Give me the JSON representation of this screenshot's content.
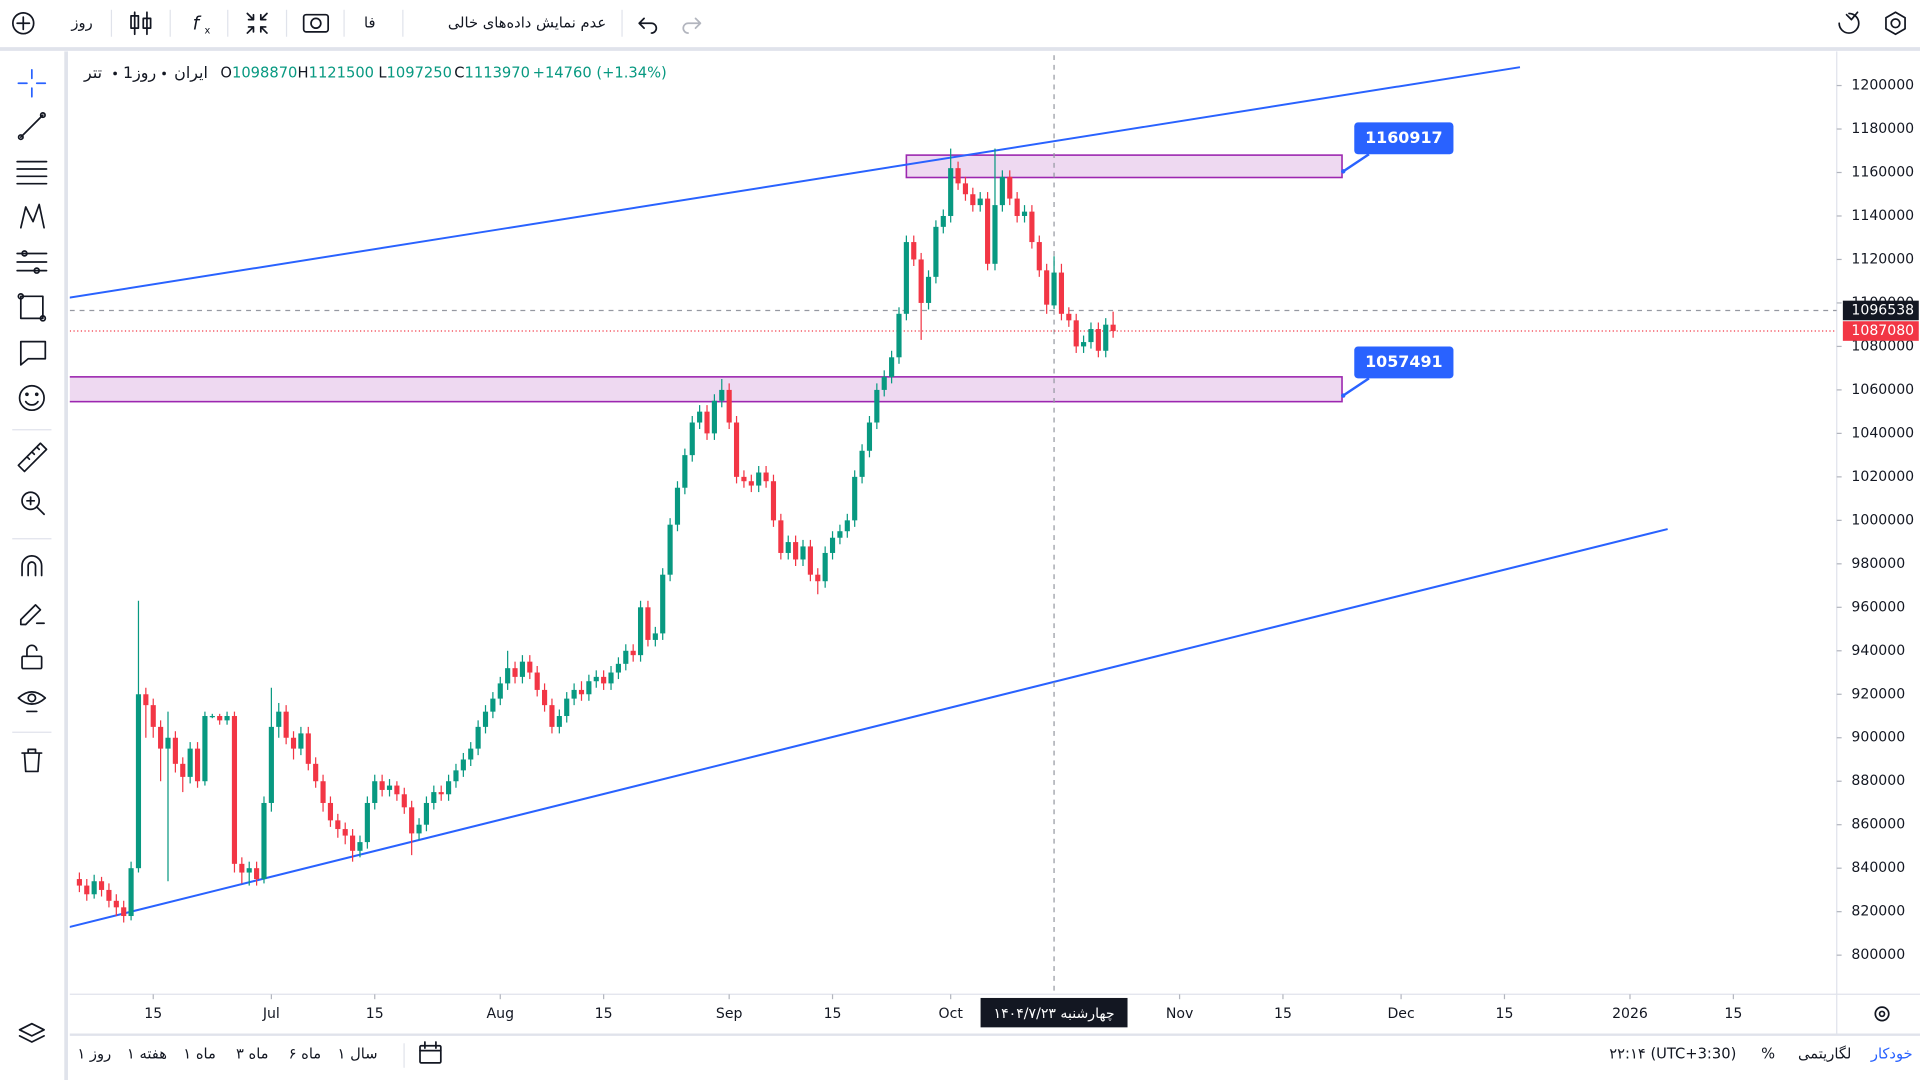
{
  "toolbar": {
    "interval": "روز",
    "language": "فا",
    "empty_data": "عدم نمایش داده‌های خالی"
  },
  "header": {
    "symbol": "تتر",
    "interval": "1روز",
    "exchange": "ایران",
    "ohlc_labels": [
      "O",
      "H",
      "L",
      "C"
    ],
    "change": "+14760 (+1.34%)"
  },
  "chart_data": {
    "type": "candlestick",
    "up_color": "#089981",
    "down_color": "#f23645",
    "line_color": "#2962ff",
    "box_fill": "rgba(206,147,216,0.35)",
    "box_stroke": "#9c27b0",
    "xlim": [
      2.7,
      242
    ],
    "ylim": [
      782000,
      1214000
    ],
    "xticks": [
      {
        "value": 14,
        "label": "15"
      },
      {
        "value": 30,
        "label": "Jul"
      },
      {
        "value": 44,
        "label": "15"
      },
      {
        "value": 61,
        "label": "Aug"
      },
      {
        "value": 75,
        "label": "15"
      },
      {
        "value": 92,
        "label": "Sep"
      },
      {
        "value": 106,
        "label": "15"
      },
      {
        "value": 122,
        "label": "Oct"
      },
      {
        "value": 153,
        "label": "Nov"
      },
      {
        "value": 167,
        "label": "15"
      },
      {
        "value": 183,
        "label": "Dec"
      },
      {
        "value": 197,
        "label": "15"
      },
      {
        "value": 214,
        "label": "2026"
      },
      {
        "value": 228,
        "label": "15"
      }
    ],
    "yticks": [
      800000,
      820000,
      840000,
      860000,
      880000,
      900000,
      920000,
      940000,
      960000,
      980000,
      1000000,
      1020000,
      1040000,
      1060000,
      1080000,
      1100000,
      1120000,
      1140000,
      1160000,
      1180000,
      1200000
    ],
    "x": [
      4,
      5,
      6,
      7,
      8,
      9,
      10,
      11,
      12,
      13,
      14,
      15,
      16,
      17,
      18,
      19,
      20,
      21,
      22,
      23,
      24,
      25,
      26,
      27,
      28,
      29,
      30,
      31,
      32,
      33,
      34,
      35,
      36,
      37,
      38,
      39,
      40,
      41,
      42,
      43,
      44,
      45,
      46,
      47,
      48,
      49,
      50,
      51,
      52,
      53,
      54,
      55,
      56,
      57,
      58,
      59,
      60,
      61,
      62,
      63,
      64,
      65,
      66,
      67,
      68,
      69,
      70,
      71,
      72,
      73,
      74,
      75,
      76,
      77,
      78,
      79,
      80,
      81,
      82,
      83,
      84,
      85,
      86,
      87,
      88,
      89,
      90,
      91,
      92,
      93,
      94,
      95,
      96,
      97,
      98,
      99,
      100,
      101,
      102,
      103,
      104,
      105,
      106,
      107,
      108,
      109,
      110,
      111,
      112,
      113,
      114,
      115,
      116,
      117,
      118,
      119,
      120,
      121,
      122,
      123,
      124,
      125,
      126,
      127,
      128,
      129,
      130,
      131,
      132,
      133,
      134,
      135,
      136,
      137,
      138,
      139,
      140,
      141,
      142,
      143,
      144
    ],
    "candles": [
      [
        835000,
        838000,
        829000,
        832000
      ],
      [
        832000,
        835000,
        825000,
        828000
      ],
      [
        828000,
        837000,
        826000,
        834000
      ],
      [
        834000,
        836000,
        827000,
        830000
      ],
      [
        830000,
        833000,
        822000,
        825000
      ],
      [
        825000,
        828000,
        818000,
        822000
      ],
      [
        822000,
        825000,
        815000,
        818000
      ],
      [
        818000,
        843000,
        816000,
        840000
      ],
      [
        840000,
        963000,
        838000,
        920000
      ],
      [
        920000,
        923000,
        900000,
        915000
      ],
      [
        915000,
        918000,
        900000,
        905000
      ],
      [
        905000,
        908000,
        880000,
        895000
      ],
      [
        895000,
        912000,
        834000,
        900000
      ],
      [
        900000,
        903000,
        884000,
        888000
      ],
      [
        888000,
        891000,
        875000,
        882000
      ],
      [
        882000,
        898000,
        879000,
        895000
      ],
      [
        895000,
        898000,
        877000,
        880000
      ],
      [
        880000,
        912000,
        878000,
        910000
      ],
      [
        910000,
        911000,
        909000,
        910000
      ],
      [
        910000,
        911000,
        906000,
        908000
      ],
      [
        908000,
        912000,
        906000,
        910000
      ],
      [
        910000,
        912000,
        838000,
        842000
      ],
      [
        842000,
        845000,
        833000,
        838000
      ],
      [
        838000,
        843000,
        832000,
        840000
      ],
      [
        840000,
        843000,
        832000,
        835000
      ],
      [
        835000,
        873000,
        833000,
        870000
      ],
      [
        870000,
        923000,
        866000,
        905000
      ],
      [
        905000,
        916000,
        900000,
        912000
      ],
      [
        912000,
        915000,
        897000,
        900000
      ],
      [
        900000,
        903000,
        890000,
        895000
      ],
      [
        895000,
        905000,
        892000,
        902000
      ],
      [
        902000,
        905000,
        885000,
        888000
      ],
      [
        888000,
        891000,
        877000,
        880000
      ],
      [
        880000,
        883000,
        866000,
        870000
      ],
      [
        870000,
        873000,
        859000,
        862000
      ],
      [
        862000,
        865000,
        854000,
        858000
      ],
      [
        858000,
        861000,
        851000,
        855000
      ],
      [
        855000,
        858000,
        843000,
        848000
      ],
      [
        848000,
        855000,
        845000,
        852000
      ],
      [
        852000,
        873000,
        849000,
        870000
      ],
      [
        870000,
        883000,
        867000,
        880000
      ],
      [
        880000,
        883000,
        873000,
        876000
      ],
      [
        876000,
        881000,
        873000,
        878000
      ],
      [
        878000,
        880000,
        871000,
        874000
      ],
      [
        874000,
        877000,
        865000,
        868000
      ],
      [
        868000,
        871000,
        846000,
        856000
      ],
      [
        856000,
        863000,
        853000,
        860000
      ],
      [
        860000,
        873000,
        857000,
        870000
      ],
      [
        870000,
        878000,
        867000,
        875000
      ],
      [
        875000,
        878000,
        871000,
        874000
      ],
      [
        874000,
        883000,
        871000,
        880000
      ],
      [
        880000,
        888000,
        877000,
        885000
      ],
      [
        885000,
        893000,
        882000,
        890000
      ],
      [
        890000,
        898000,
        887000,
        895000
      ],
      [
        895000,
        908000,
        892000,
        905000
      ],
      [
        905000,
        915000,
        902000,
        912000
      ],
      [
        912000,
        921000,
        909000,
        918000
      ],
      [
        918000,
        928000,
        915000,
        925000
      ],
      [
        925000,
        940000,
        922000,
        932000
      ],
      [
        932000,
        935000,
        925000,
        928000
      ],
      [
        928000,
        938000,
        925000,
        935000
      ],
      [
        935000,
        938000,
        927000,
        930000
      ],
      [
        930000,
        933000,
        919000,
        922000
      ],
      [
        922000,
        925000,
        912000,
        915000
      ],
      [
        915000,
        918000,
        902000,
        905000
      ],
      [
        905000,
        913000,
        902000,
        910000
      ],
      [
        910000,
        921000,
        907000,
        918000
      ],
      [
        918000,
        925000,
        915000,
        922000
      ],
      [
        922000,
        926000,
        917000,
        920000
      ],
      [
        920000,
        929000,
        917000,
        926000
      ],
      [
        926000,
        931000,
        923000,
        928000
      ],
      [
        928000,
        931000,
        922000,
        925000
      ],
      [
        925000,
        933000,
        922000,
        930000
      ],
      [
        930000,
        937000,
        927000,
        934000
      ],
      [
        934000,
        943000,
        931000,
        940000
      ],
      [
        940000,
        943000,
        935000,
        938000
      ],
      [
        938000,
        963000,
        935000,
        960000
      ],
      [
        960000,
        963000,
        942000,
        945000
      ],
      [
        945000,
        951000,
        942000,
        948000
      ],
      [
        948000,
        978000,
        945000,
        975000
      ],
      [
        975000,
        1001000,
        972000,
        998000
      ],
      [
        998000,
        1018000,
        995000,
        1015000
      ],
      [
        1015000,
        1033000,
        1012000,
        1030000
      ],
      [
        1030000,
        1048000,
        1027000,
        1045000
      ],
      [
        1045000,
        1053000,
        1042000,
        1050000
      ],
      [
        1050000,
        1053000,
        1037000,
        1040000
      ],
      [
        1040000,
        1058000,
        1037000,
        1055000
      ],
      [
        1055000,
        1065000,
        1052000,
        1060000
      ],
      [
        1060000,
        1063000,
        1042000,
        1045000
      ],
      [
        1045000,
        1048000,
        1017000,
        1020000
      ],
      [
        1020000,
        1023000,
        1015000,
        1018000
      ],
      [
        1018000,
        1021000,
        1013000,
        1016000
      ],
      [
        1016000,
        1025000,
        1013000,
        1022000
      ],
      [
        1022000,
        1025000,
        1015000,
        1018000
      ],
      [
        1018000,
        1021000,
        997000,
        1000000
      ],
      [
        1000000,
        1003000,
        982000,
        985000
      ],
      [
        985000,
        993000,
        982000,
        990000
      ],
      [
        990000,
        993000,
        979000,
        982000
      ],
      [
        982000,
        991000,
        979000,
        988000
      ],
      [
        988000,
        991000,
        972000,
        975000
      ],
      [
        975000,
        978000,
        966000,
        972000
      ],
      [
        972000,
        988000,
        969000,
        985000
      ],
      [
        985000,
        995000,
        982000,
        992000
      ],
      [
        992000,
        998000,
        989000,
        995000
      ],
      [
        995000,
        1003000,
        992000,
        1000000
      ],
      [
        1000000,
        1023000,
        997000,
        1020000
      ],
      [
        1020000,
        1035000,
        1017000,
        1032000
      ],
      [
        1032000,
        1048000,
        1029000,
        1045000
      ],
      [
        1045000,
        1063000,
        1042000,
        1060000
      ],
      [
        1060000,
        1069000,
        1057000,
        1066000
      ],
      [
        1066000,
        1078000,
        1063000,
        1075000
      ],
      [
        1075000,
        1098000,
        1072000,
        1095000
      ],
      [
        1095000,
        1131000,
        1092000,
        1128000
      ],
      [
        1128000,
        1131000,
        1117000,
        1120000
      ],
      [
        1120000,
        1123000,
        1083000,
        1100000
      ],
      [
        1100000,
        1115000,
        1097000,
        1112000
      ],
      [
        1112000,
        1138000,
        1109000,
        1135000
      ],
      [
        1135000,
        1143000,
        1132000,
        1140000
      ],
      [
        1140000,
        1171000,
        1137000,
        1162000
      ],
      [
        1162000,
        1165000,
        1152000,
        1155000
      ],
      [
        1155000,
        1158000,
        1147000,
        1150000
      ],
      [
        1150000,
        1153000,
        1142000,
        1145000
      ],
      [
        1145000,
        1151000,
        1142000,
        1148000
      ],
      [
        1148000,
        1151000,
        1115000,
        1118000
      ],
      [
        1118000,
        1171000,
        1115000,
        1145000
      ],
      [
        1145000,
        1161000,
        1142000,
        1158000
      ],
      [
        1158000,
        1161000,
        1145000,
        1148000
      ],
      [
        1148000,
        1151000,
        1137000,
        1140000
      ],
      [
        1140000,
        1145000,
        1137000,
        1142000
      ],
      [
        1142000,
        1145000,
        1125000,
        1128000
      ],
      [
        1128000,
        1131000,
        1112000,
        1115000
      ],
      [
        1115000,
        1118000,
        1095000,
        1099210
      ],
      [
        1098870,
        1121500,
        1097250,
        1113970
      ],
      [
        1113970,
        1118000,
        1092000,
        1095000
      ],
      [
        1095000,
        1098000,
        1089000,
        1092000
      ],
      [
        1092000,
        1095000,
        1077000,
        1080000
      ],
      [
        1080000,
        1085000,
        1077000,
        1082000
      ],
      [
        1082000,
        1091000,
        1079000,
        1088000
      ],
      [
        1088000,
        1091000,
        1075000,
        1078000
      ],
      [
        1078000,
        1093000,
        1075000,
        1090000
      ],
      [
        1090000,
        1096000,
        1084000,
        1087080
      ]
    ],
    "trendlines": [
      {
        "x": [
          0,
          199.1
        ],
        "y": [
          1101000,
          1208450
        ]
      },
      {
        "x": [
          0,
          219.1
        ],
        "y": [
          810700,
          996000
        ]
      }
    ],
    "boxes": [
      {
        "x": [
          116,
          175
        ],
        "y": [
          1157700,
          1168000
        ],
        "label": 1160917
      },
      {
        "x": [
          0,
          175
        ],
        "y": [
          1054600,
          1066000
        ],
        "label": 1057491
      }
    ],
    "crosshair": {
      "x": 136,
      "y": 1096538,
      "date_label": "چهارشنبه ۱۴۰۴/۷/۲۳"
    },
    "last_price": 1087080
  },
  "footer": {
    "ranges": [
      "۱ روز",
      "۱ هفته",
      "۱ ماه",
      "۳ ماه",
      "۶ ماه",
      "۱ سال"
    ],
    "time": "۲۲:۱۴ (UTC+3:30)",
    "percent": "%",
    "log": "لگاریتمی",
    "auto": "خودکار"
  }
}
